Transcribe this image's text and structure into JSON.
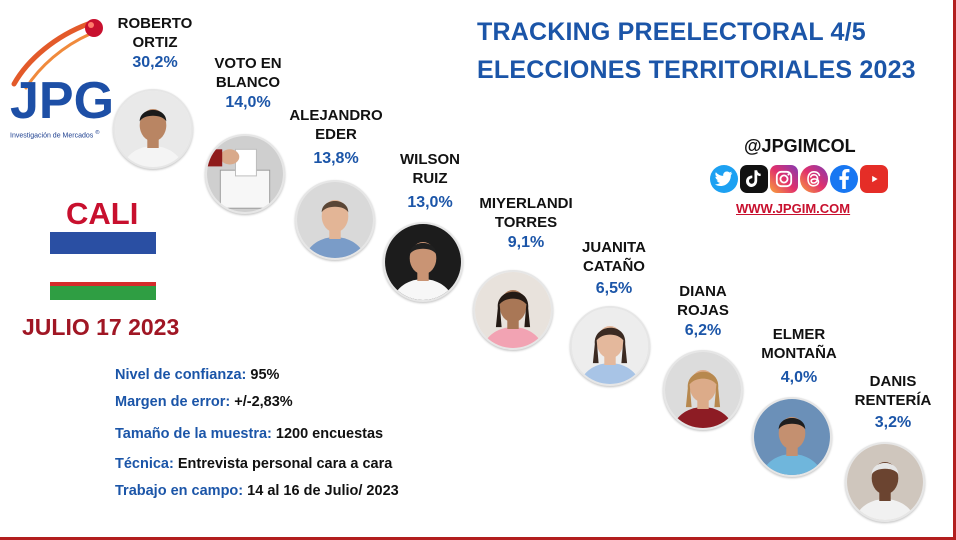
{
  "logo": {
    "text": "JPG",
    "caption": "Investigación de Mercados",
    "reg": "®"
  },
  "title": {
    "line1": "TRACKING PREELECTORAL 4/5",
    "line2": "ELECCIONES TERRITORIALES 2023"
  },
  "social": {
    "handle": "@JPGIMCOL",
    "website": "WWW.JPGIM.COM",
    "icons": [
      "twitter-icon",
      "tiktok-icon",
      "instagram-icon",
      "threads-icon",
      "facebook-icon",
      "youtube-icon"
    ]
  },
  "city": "CALI",
  "date": "JULIO 17 2023",
  "colors": {
    "title_blue": "#1b55a8",
    "accent_red": "#c8102e",
    "flag_blue": "#2a4fa3",
    "flag_red": "#d52b2b",
    "flag_green": "#2f9e43"
  },
  "methodology": [
    {
      "label": "Nivel de confianza:",
      "value": "95%"
    },
    {
      "label": "Margen de error:",
      "value": "+/-2,83%"
    },
    {
      "label": "Tamaño de la muestra:",
      "value": "1200 encuestas"
    },
    {
      "label": "Técnica:",
      "value": "Entrevista personal cara a cara"
    },
    {
      "label": "Trabajo en campo:",
      "value": "14 al 16 de Julio/ 2023"
    }
  ],
  "chart_data": {
    "type": "table",
    "categories": [
      "ROBERTO ORTIZ",
      "VOTO EN BLANCO",
      "ALEJANDRO EDER",
      "WILSON RUIZ",
      "MIYERLANDI TORRES",
      "JUANITA CATAÑO",
      "DIANA ROJAS",
      "ELMER MONTAÑA",
      "DANIS RENTERÍA"
    ],
    "values": [
      30.2,
      14.0,
      13.8,
      13.0,
      9.1,
      6.5,
      6.2,
      4.0,
      3.2
    ],
    "value_labels": [
      "30,2%",
      "14,0%",
      "13,8%",
      "13,0%",
      "9,1%",
      "6,5%",
      "6,2%",
      "4,0%",
      "3,2%"
    ],
    "title": "",
    "xlabel": "",
    "ylabel": ""
  },
  "candidates": [
    {
      "line1": "ROBERTO",
      "line2": "ORTIZ",
      "pct": "30,2%",
      "skin": "#b98563",
      "hair": "#1a1a1a",
      "shirt": "#f4f4f4",
      "bg": "#e9e9e9"
    },
    {
      "line1": "VOTO EN",
      "line2": "BLANCO",
      "pct": "14,0%",
      "skin": "#d9a98a",
      "hair": "#2b2b2b",
      "shirt": "#8f1b1b",
      "bg": "#cfcfcf"
    },
    {
      "line1": "ALEJANDRO",
      "line2": "EDER",
      "pct": "13,8%",
      "skin": "#e3b596",
      "hair": "#5a4636",
      "shirt": "#7a9cc8",
      "bg": "#d9d9d9"
    },
    {
      "line1": "WILSON",
      "line2": "RUIZ",
      "pct": "13,0%",
      "skin": "#c99474",
      "hair": "#202020",
      "shirt": "#f7f7f7",
      "bg": "#1c1c1c"
    },
    {
      "line1": "MIYERLANDI",
      "line2": "TORRES",
      "pct": "9,1%",
      "skin": "#a97756",
      "hair": "#241a14",
      "shirt": "#f2a3b3",
      "bg": "#e8e2dc"
    },
    {
      "line1": "JUANITA",
      "line2": "CATAÑO",
      "pct": "6,5%",
      "skin": "#e4b89c",
      "hair": "#3b2a22",
      "shirt": "#a8c4e6",
      "bg": "#ededed"
    },
    {
      "line1": "DIANA",
      "line2": "ROJAS",
      "pct": "6,2%",
      "skin": "#dcab89",
      "hair": "#b7884e",
      "shirt": "#8d1c24",
      "bg": "#dcdcdc"
    },
    {
      "line1": "ELMER",
      "line2": "MONTAÑA",
      "pct": "4,0%",
      "skin": "#c49070",
      "hair": "#1e1e1e",
      "shirt": "#6fb6dc",
      "bg": "#6b90b8"
    },
    {
      "line1": "DANIS",
      "line2": "RENTERÍA",
      "pct": "3,2%",
      "skin": "#6b4430",
      "hair": "#e6e6e6",
      "shirt": "#f1f1f1",
      "bg": "#cfc6bd"
    }
  ]
}
